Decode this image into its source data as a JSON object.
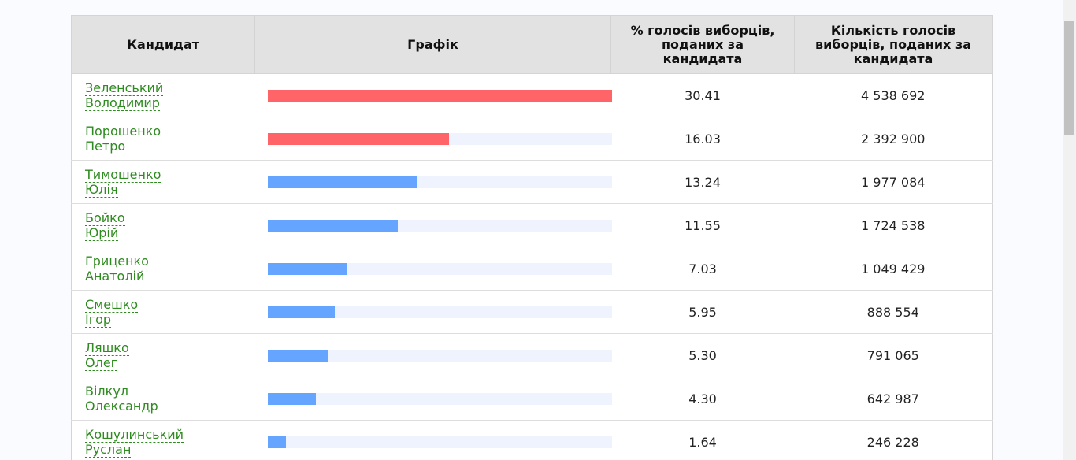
{
  "table": {
    "headers": {
      "candidate": "Кандидат",
      "graph": "Графік",
      "percent": "% голосів виборців, поданих за кандидата",
      "votes": "Кількість голосів виборців, поданих за кандидата"
    },
    "rows": [
      {
        "surname": "Зеленський",
        "given": "Володимир",
        "percent": "30.41",
        "votes": "4 538 692",
        "bar_color": "#ff6469"
      },
      {
        "surname": "Порошенко",
        "given": "Петро",
        "percent": "16.03",
        "votes": "2 392 900",
        "bar_color": "#ff6469"
      },
      {
        "surname": "Тимошенко",
        "given": "Юлія",
        "percent": "13.24",
        "votes": "1 977 084",
        "bar_color": "#65a5ff"
      },
      {
        "surname": "Бойко",
        "given": "Юрій",
        "percent": "11.55",
        "votes": "1 724 538",
        "bar_color": "#65a5ff"
      },
      {
        "surname": "Гриценко",
        "given": "Анатолій",
        "percent": "7.03",
        "votes": "1 049 429",
        "bar_color": "#65a5ff"
      },
      {
        "surname": "Смешко",
        "given": "Ігор",
        "percent": "5.95",
        "votes": "888 554",
        "bar_color": "#65a5ff"
      },
      {
        "surname": "Ляшко",
        "given": "Олег",
        "percent": "5.30",
        "votes": "791 065",
        "bar_color": "#65a5ff"
      },
      {
        "surname": "Вілкул",
        "given": "Олександр",
        "percent": "4.30",
        "votes": "642 987",
        "bar_color": "#65a5ff"
      },
      {
        "surname": "Кошулинський",
        "given": "Руслан",
        "percent": "1.64",
        "votes": "246 228",
        "bar_color": "#65a5ff"
      }
    ]
  },
  "colors": {
    "leader_bar": "#ff6469",
    "other_bar": "#65a5ff",
    "bar_track": "#eef3fd",
    "link": "#2e8b1f",
    "header_bg": "#e2e2e2"
  }
}
